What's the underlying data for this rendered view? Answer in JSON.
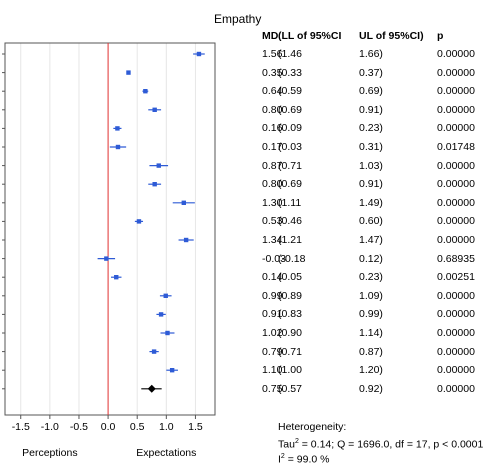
{
  "chart_data": {
    "type": "forest",
    "title": "Empathy",
    "columns": {
      "md": "MD",
      "ll": "(LL of 95%CI",
      "ul": "UL of 95%CI)",
      "p": "p"
    },
    "rows": [
      {
        "md": 1.56,
        "ll": 1.46,
        "ul": 1.66,
        "md_label": "1.56",
        "ll_label": "(1.46",
        "ul_label": "1.66)",
        "p_label": "0.00000"
      },
      {
        "md": 0.35,
        "ll": 0.33,
        "ul": 0.37,
        "md_label": "0.35",
        "ll_label": "(0.33",
        "ul_label": "0.37)",
        "p_label": "0.00000"
      },
      {
        "md": 0.64,
        "ll": 0.59,
        "ul": 0.69,
        "md_label": "0.64",
        "ll_label": "(0.59",
        "ul_label": "0.69)",
        "p_label": "0.00000"
      },
      {
        "md": 0.8,
        "ll": 0.69,
        "ul": 0.91,
        "md_label": "0.80",
        "ll_label": "(0.69",
        "ul_label": "0.91)",
        "p_label": "0.00000"
      },
      {
        "md": 0.16,
        "ll": 0.09,
        "ul": 0.23,
        "md_label": "0.16",
        "ll_label": "(0.09",
        "ul_label": "0.23)",
        "p_label": "0.00000"
      },
      {
        "md": 0.17,
        "ll": 0.03,
        "ul": 0.31,
        "md_label": "0.17",
        "ll_label": "(0.03",
        "ul_label": "0.31)",
        "p_label": "0.01748"
      },
      {
        "md": 0.87,
        "ll": 0.71,
        "ul": 1.03,
        "md_label": "0.87",
        "ll_label": "(0.71",
        "ul_label": "1.03)",
        "p_label": "0.00000"
      },
      {
        "md": 0.8,
        "ll": 0.69,
        "ul": 0.91,
        "md_label": "0.80",
        "ll_label": "(0.69",
        "ul_label": "0.91)",
        "p_label": "0.00000"
      },
      {
        "md": 1.3,
        "ll": 1.11,
        "ul": 1.49,
        "md_label": "1.30",
        "ll_label": "(1.11",
        "ul_label": "1.49)",
        "p_label": "0.00000"
      },
      {
        "md": 0.53,
        "ll": 0.46,
        "ul": 0.6,
        "md_label": "0.53",
        "ll_label": "(0.46",
        "ul_label": "0.60)",
        "p_label": "0.00000"
      },
      {
        "md": 1.34,
        "ll": 1.21,
        "ul": 1.47,
        "md_label": "1.34",
        "ll_label": "(1.21",
        "ul_label": "1.47)",
        "p_label": "0.00000"
      },
      {
        "md": -0.03,
        "ll": -0.18,
        "ul": 0.12,
        "md_label": "-0.03",
        "ll_label": "(-0.18",
        "ul_label": "0.12)",
        "p_label": "0.68935"
      },
      {
        "md": 0.14,
        "ll": 0.05,
        "ul": 0.23,
        "md_label": "0.14",
        "ll_label": "(0.05",
        "ul_label": "0.23)",
        "p_label": "0.00251"
      },
      {
        "md": 0.99,
        "ll": 0.89,
        "ul": 1.09,
        "md_label": "0.99",
        "ll_label": "(0.89",
        "ul_label": "1.09)",
        "p_label": "0.00000"
      },
      {
        "md": 0.91,
        "ll": 0.83,
        "ul": 0.99,
        "md_label": "0.91",
        "ll_label": "(0.83",
        "ul_label": "0.99)",
        "p_label": "0.00000"
      },
      {
        "md": 1.02,
        "ll": 0.9,
        "ul": 1.14,
        "md_label": "1.02",
        "ll_label": "(0.90",
        "ul_label": "1.14)",
        "p_label": "0.00000"
      },
      {
        "md": 0.79,
        "ll": 0.71,
        "ul": 0.87,
        "md_label": "0.79",
        "ll_label": "(0.71",
        "ul_label": "0.87)",
        "p_label": "0.00000"
      },
      {
        "md": 1.1,
        "ll": 1.0,
        "ul": 1.2,
        "md_label": "1.10",
        "ll_label": "(1.00",
        "ul_label": "1.20)",
        "p_label": "0.00000"
      }
    ],
    "overall": {
      "md": 0.75,
      "ll": 0.57,
      "ul": 0.92,
      "md_label": "0.75",
      "ll_label": "(0.57",
      "ul_label": "0.92)",
      "p_label": "0.00000"
    },
    "x_axis": {
      "ticks": [
        -1.5,
        -1.0,
        -0.5,
        0.0,
        0.5,
        1.0,
        1.5
      ],
      "tick_labels": [
        "-1.5",
        "-1.0",
        "-0.5",
        "0.0",
        "0.5",
        "1.0",
        "1.5"
      ],
      "range": [
        -1.65,
        1.75
      ],
      "left_label": "Perceptions",
      "right_label": "Expectations"
    },
    "reference_line": 0,
    "grid": "vertical",
    "heterogeneity": {
      "heading": "Heterogeneity:",
      "tau_label": "Tau",
      "tau_sup": "2",
      "tau_rest": " = 0.14; Q = 1696.0, df = 17, p < 0.0001",
      "i_label": "I",
      "i_sup": "2",
      "i_rest": " = 99.0 %"
    },
    "colors": {
      "marker": "#2e5bd6",
      "summary": "#000000",
      "reference": "#e03030",
      "grid": "#e6e6e6",
      "frame": "#555555"
    }
  }
}
